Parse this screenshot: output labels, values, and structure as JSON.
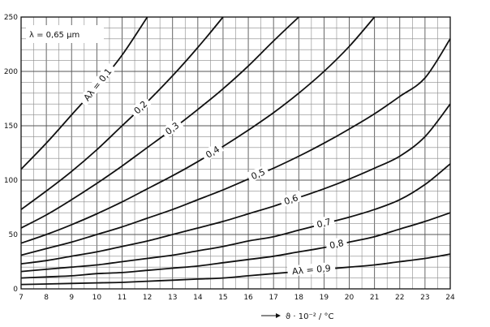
{
  "chart_data": {
    "type": "line",
    "title": "",
    "annotation": "λ = 0,65 µm",
    "xlabel": "ϑ · 10⁻² / °C",
    "ylabel": "",
    "xlim": [
      7,
      24
    ],
    "ylim": [
      0,
      250
    ],
    "x_ticks": [
      7,
      8,
      9,
      10,
      11,
      12,
      13,
      14,
      15,
      16,
      17,
      18,
      19,
      20,
      21,
      22,
      23,
      24
    ],
    "y_ticks": [
      0,
      50,
      100,
      150,
      200,
      250
    ],
    "grid": true,
    "series": [
      {
        "name": "Aλ = 0,1",
        "x": [
          7,
          8,
          9,
          10,
          11,
          12
        ],
        "y": [
          110,
          134,
          160,
          186,
          215,
          250
        ]
      },
      {
        "name": "0,2",
        "x": [
          7,
          8,
          9,
          10,
          11,
          12,
          13,
          14,
          15
        ],
        "y": [
          73,
          90,
          108,
          128,
          150,
          172,
          196,
          222,
          250
        ]
      },
      {
        "name": "0,3",
        "x": [
          7,
          8,
          9,
          10,
          11,
          12,
          13,
          14,
          15,
          16,
          17,
          18
        ],
        "y": [
          56,
          68,
          82,
          97,
          113,
          130,
          147,
          165,
          184,
          205,
          228,
          250
        ]
      },
      {
        "name": "0,4",
        "x": [
          7,
          8,
          9,
          10,
          11,
          12,
          13,
          14,
          15,
          16,
          17,
          18,
          19,
          20,
          21
        ],
        "y": [
          42,
          50,
          59,
          69,
          80,
          92,
          104,
          117,
          131,
          146,
          162,
          180,
          200,
          223,
          250
        ]
      },
      {
        "name": "0,5",
        "x": [
          7,
          8,
          9,
          10,
          11,
          12,
          13,
          14,
          15,
          16,
          17,
          18,
          19,
          20,
          21,
          22,
          23,
          24
        ],
        "y": [
          31,
          37,
          43,
          50,
          57,
          65,
          73,
          82,
          91,
          101,
          111,
          122,
          134,
          147,
          161,
          177,
          194,
          230
        ]
      },
      {
        "name": "0,6",
        "x": [
          7,
          8,
          9,
          10,
          11,
          12,
          13,
          14,
          15,
          16,
          17,
          18,
          19,
          20,
          21,
          22,
          23,
          24
        ],
        "y": [
          23,
          26,
          30,
          34,
          39,
          44,
          50,
          56,
          62,
          69,
          76,
          84,
          92,
          101,
          111,
          122,
          140,
          170
        ]
      },
      {
        "name": "0,7",
        "x": [
          7,
          8,
          9,
          10,
          11,
          12,
          13,
          14,
          15,
          16,
          17,
          18,
          19,
          20,
          21,
          22,
          23,
          24
        ],
        "y": [
          16,
          18,
          20,
          22,
          25,
          28,
          31,
          35,
          39,
          44,
          48,
          54,
          60,
          66,
          73,
          82,
          96,
          115
        ]
      },
      {
        "name": "0,8",
        "x": [
          7,
          8,
          9,
          10,
          11,
          12,
          13,
          14,
          15,
          16,
          17,
          18,
          19,
          20,
          21,
          22,
          23,
          24
        ],
        "y": [
          10,
          11,
          12,
          14,
          15,
          17,
          19,
          21,
          24,
          27,
          30,
          34,
          38,
          43,
          48,
          55,
          62,
          70
        ]
      },
      {
        "name": "Aλ = 0,9",
        "x": [
          7,
          8,
          9,
          10,
          11,
          12,
          13,
          14,
          15,
          16,
          17,
          18,
          19,
          20,
          21,
          22,
          23,
          24
        ],
        "y": [
          4,
          4.5,
          5,
          5.5,
          6,
          7,
          8,
          9,
          10,
          12,
          14,
          16,
          18,
          20,
          22,
          25,
          28,
          32
        ]
      }
    ]
  }
}
